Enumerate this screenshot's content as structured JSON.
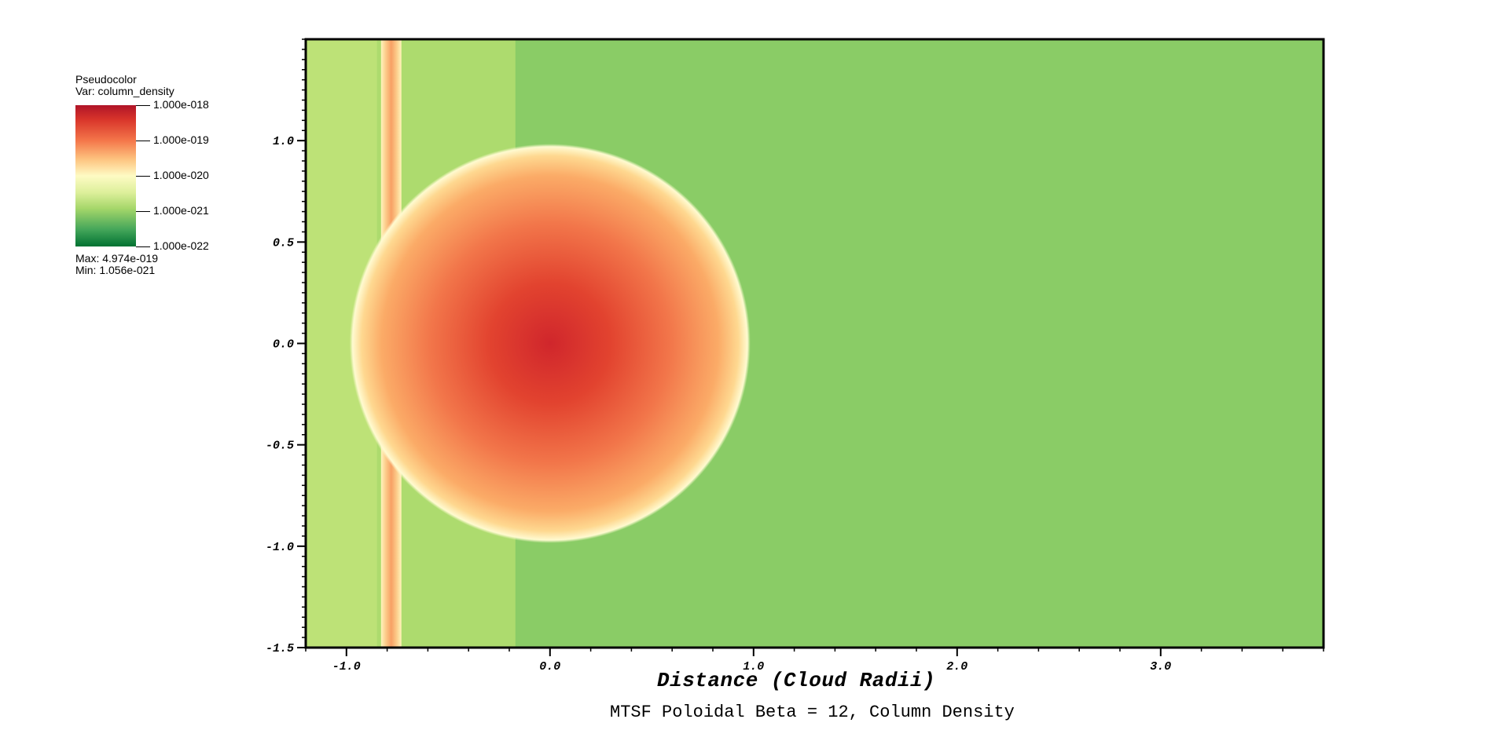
{
  "legend": {
    "plot_type": "Pseudocolor",
    "var_line": "Var: column_density",
    "colorbar_labels": [
      "1.000e-018",
      "1.000e-019",
      "1.000e-020",
      "1.000e-021",
      "1.000e-022"
    ],
    "max_line": "Max:  4.974e-019",
    "min_line": "Min:  1.056e-021",
    "colormap": [
      "#b01428",
      "#f4764a",
      "#fefbc4",
      "#a6d76a",
      "#017232"
    ]
  },
  "chart_data": {
    "type": "heatmap",
    "title": "MTSF Poloidal Beta = 12, Column Density",
    "xlabel": "Distance (Cloud Radii)",
    "ylabel": "",
    "xlim": [
      -1.2,
      3.8
    ],
    "ylim": [
      -1.5,
      1.5
    ],
    "x_ticks": [
      -1.0,
      0.0,
      1.0,
      2.0,
      3.0
    ],
    "x_tick_labels": [
      "-1.0",
      "0.0",
      "1.0",
      "2.0",
      "3.0"
    ],
    "y_ticks": [
      1.0,
      0.5,
      0.0,
      -0.5,
      -1.0,
      -1.5
    ],
    "y_tick_labels": [
      "1.0",
      "0.5",
      "0.0",
      "-0.5",
      "-1.0",
      "-1.5"
    ],
    "colorbar": {
      "scale": "log",
      "range": [
        1e-22,
        1e-18
      ]
    },
    "variable": "column_density",
    "max_value": 4.974e-19,
    "min_value": 1.056e-21,
    "features": {
      "cloud": {
        "center": [
          0.0,
          0.0
        ],
        "radius": 0.97,
        "peak_value": 4.974e-19
      },
      "front_sheet": {
        "x": -0.78,
        "width": 0.1
      },
      "boundary_1_x": -0.85,
      "boundary_2_x": -0.17,
      "background_right": 1.056e-21
    },
    "colors": {
      "region_far_left": "#bde277",
      "region_mid_left": "#addb6e",
      "region_right": "#8acc66",
      "cloud_core": "#d0262c",
      "cloud_mid": "#f2764a",
      "cloud_edge": "#fed890",
      "sheet": "#fddfa0"
    }
  }
}
